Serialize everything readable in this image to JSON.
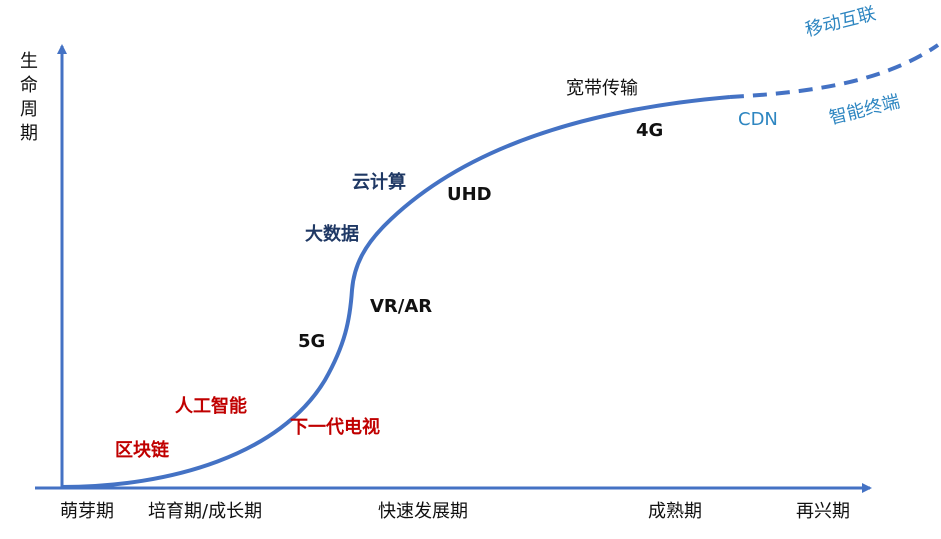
{
  "axes": {
    "y_title": "生命周期",
    "x_phases": [
      "萌芽期",
      "培育期/成长期",
      "快速发展期",
      "成熟期",
      "再兴期"
    ]
  },
  "technologies": {
    "blockchain": "区块链",
    "ai": "人工智能",
    "next_gen_tv": "下一代电视",
    "five_g": "5G",
    "vr_ar": "VR/AR",
    "big_data": "大数据",
    "cloud": "云计算",
    "uhd": "UHD",
    "broadband": "宽带传输",
    "four_g": "4G",
    "cdn": "CDN",
    "mobile_internet": "移动互联",
    "smart_terminal": "智能终端"
  },
  "colors": {
    "curve": "#4472c4",
    "axis": "#4472c4",
    "red": "#c00000",
    "navy": "#1f3864",
    "light_blue": "#2e86c1"
  }
}
